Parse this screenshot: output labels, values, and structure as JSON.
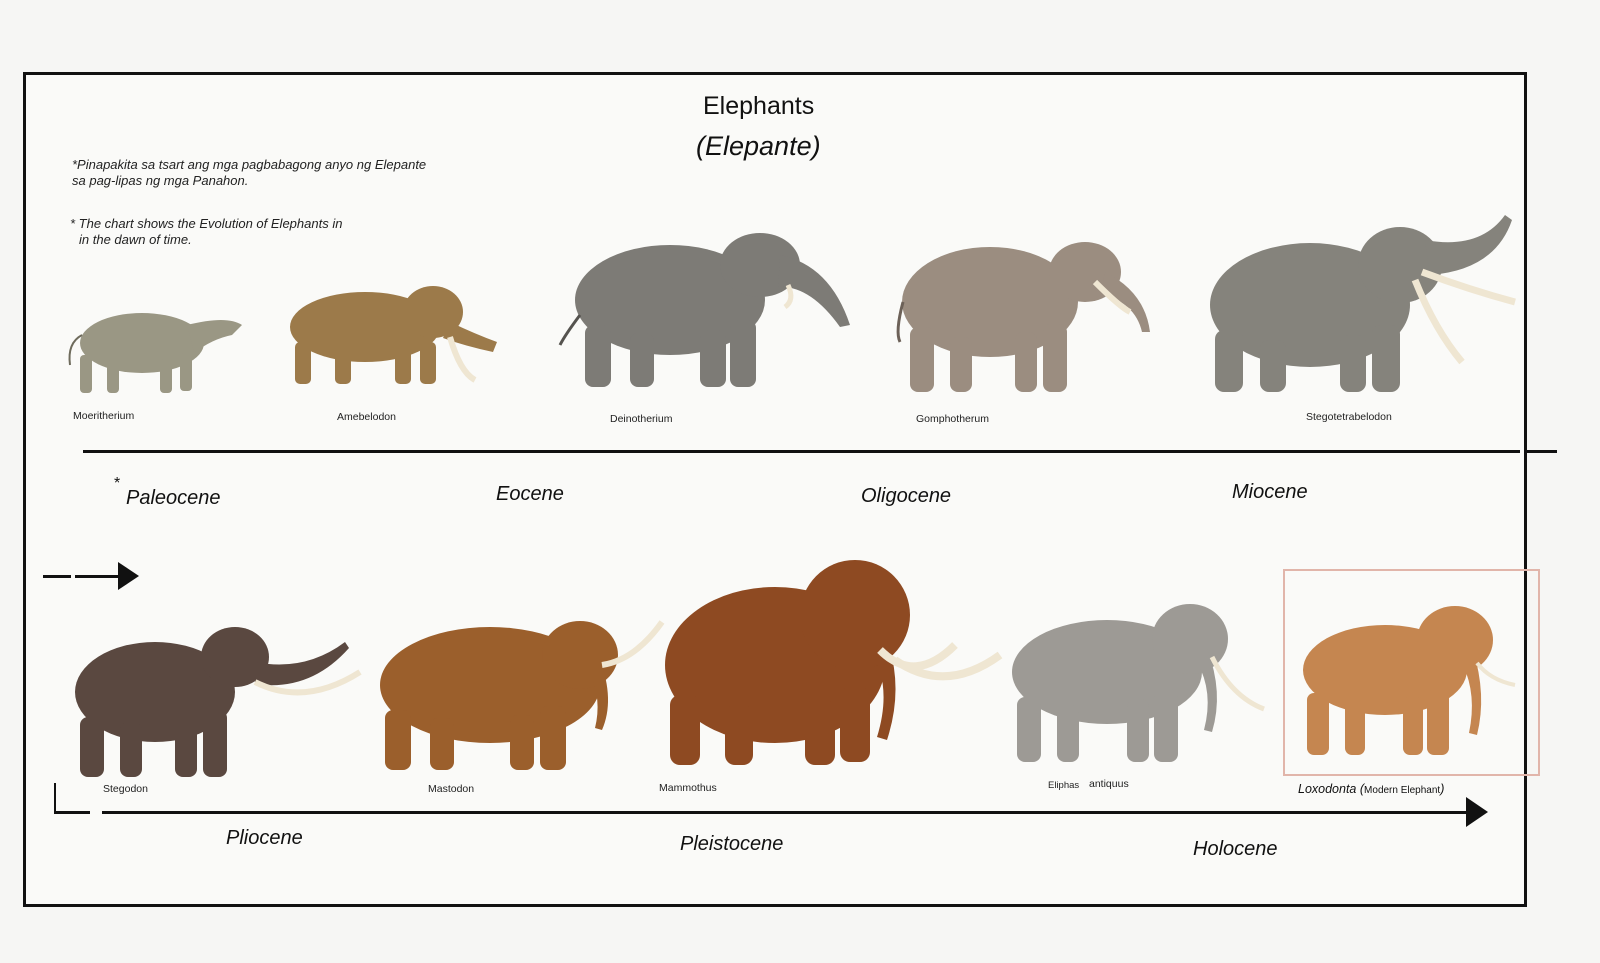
{
  "header": {
    "title": "Elephants",
    "subtitle": "(Elepante)"
  },
  "notes": {
    "tagalog_line1": "*Pinapakita sa tsart ang mga pagbabagong anyo ng Elepante",
    "tagalog_line2": "sa pag-lipas ng mga Panahon.",
    "english_line1": "* The chart shows the Evolution of Elephants in",
    "english_line2": "in the dawn of time."
  },
  "top_row": {
    "animals": [
      {
        "label": "Moeritherium",
        "icon": "moeritherium-illustration",
        "color": "#9a9784"
      },
      {
        "label": "Amebelodon",
        "icon": "amebelodon-illustration",
        "color": "#9c7a4a"
      },
      {
        "label": "Deinotherium",
        "icon": "deinotherium-illustration",
        "color": "#7d7b76"
      },
      {
        "label": "Gomphotherum",
        "icon": "gomphotherum-illustration",
        "color": "#9b8d80"
      },
      {
        "label": "Stegotetrabelodon",
        "icon": "stegotetrabelodon-illustration",
        "color": "#85837c"
      }
    ],
    "eras": [
      "Paleocene",
      "Eocene",
      "Oligocene",
      "Miocene"
    ],
    "asterisk": "*"
  },
  "bottom_row": {
    "animals": [
      {
        "label": "Stegodon",
        "icon": "stegodon-illustration",
        "color": "#5a4840"
      },
      {
        "label": "Mastodon",
        "icon": "mastodon-illustration",
        "color": "#9b5f2c"
      },
      {
        "label": "Mammothus",
        "icon": "mammothus-illustration",
        "color": "#8e4a22"
      },
      {
        "label_a": "Eliphas",
        "label_b": "antiquus",
        "icon": "eliphas-antiquus-illustration",
        "color": "#9d9a95"
      },
      {
        "label_main": "Loxodonta",
        "label_paren_open": "(",
        "label_note": "Modern Elephant",
        "label_paren_close": ")",
        "icon": "loxodonta-illustration",
        "color": "#c58650"
      }
    ],
    "eras": [
      "Pliocene",
      "Pleistocene",
      "Holocene"
    ]
  },
  "colors": {
    "line": "#111111",
    "tusk": "#efe6d2",
    "highlight_border": "#e1b5aa"
  }
}
